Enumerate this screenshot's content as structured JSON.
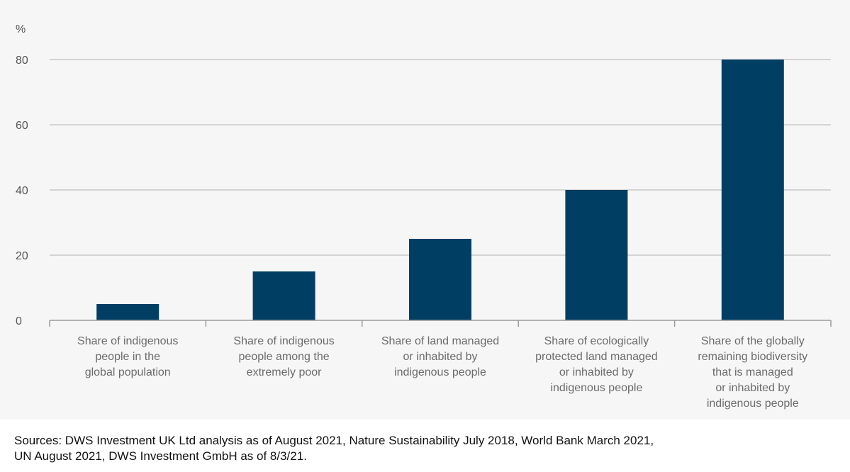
{
  "chart_data": {
    "type": "bar",
    "categories": [
      [
        "Share of indigenous",
        "people in the",
        "global population"
      ],
      [
        "Share of indigenous",
        "people among the",
        "extremely poor"
      ],
      [
        "Share of land managed",
        "or inhabited by",
        "indigenous people"
      ],
      [
        "Share of ecologically",
        "protected land managed",
        "or inhabited by",
        "indigenous people"
      ],
      [
        "Share of the globally",
        "remaining biodiversity",
        "that is managed",
        "or inhabited by",
        "indigenous people"
      ]
    ],
    "values": [
      5,
      15,
      25,
      40,
      80
    ],
    "ylabel": "%",
    "ylim": [
      0,
      80
    ],
    "yticks": [
      0,
      20,
      40,
      60,
      80
    ],
    "grid": true,
    "bar_color": "#003f63",
    "grid_color": "#c8c8c8"
  },
  "footer": {
    "sources_line1": "Sources: DWS Investment UK Ltd analysis as of August 2021, Nature Sustainability July 2018, World Bank March 2021,",
    "sources_line2": "UN August 2021, DWS Investment GmbH as of 8/3/21."
  }
}
